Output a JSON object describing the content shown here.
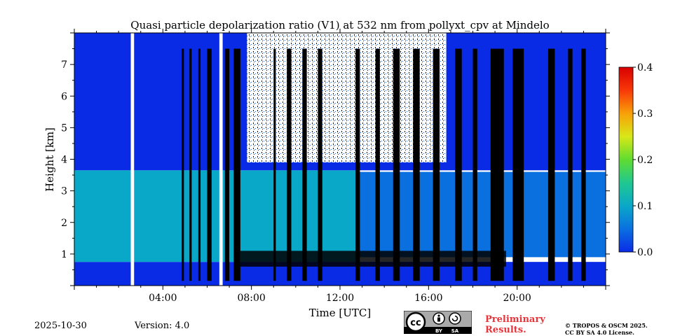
{
  "chart_data": {
    "type": "heatmap",
    "title": "Quasi particle depolarization ratio (V1) at 532 nm from pollyxt_cpv at Mindelo",
    "xlabel": "Time [UTC]",
    "ylabel": "Height [km]",
    "xlim_hours": [
      0,
      24
    ],
    "ylim_km": [
      0,
      8
    ],
    "x_ticks": [
      {
        "hour": 4,
        "label": "04:00"
      },
      {
        "hour": 8,
        "label": "08:00"
      },
      {
        "hour": 12,
        "label": "12:00"
      },
      {
        "hour": 16,
        "label": "16:00"
      },
      {
        "hour": 20,
        "label": "20:00"
      }
    ],
    "y_ticks": [
      {
        "km": 1,
        "label": "1"
      },
      {
        "km": 2,
        "label": "2"
      },
      {
        "km": 3,
        "label": "3"
      },
      {
        "km": 4,
        "label": "4"
      },
      {
        "km": 5,
        "label": "5"
      },
      {
        "km": 6,
        "label": "6"
      },
      {
        "km": 7,
        "label": "7"
      }
    ],
    "colorbar": {
      "range": [
        0.0,
        0.4
      ],
      "ticks": [
        {
          "value": 0.0,
          "label": "0.0"
        },
        {
          "value": 0.1,
          "label": "0.1"
        },
        {
          "value": 0.2,
          "label": "0.2"
        },
        {
          "value": 0.3,
          "label": "0.3"
        },
        {
          "value": 0.4,
          "label": "0.4"
        }
      ],
      "colormap": [
        "#0a2be6",
        "#0a70e0",
        "#0aa8c8",
        "#20c890",
        "#60dc30",
        "#d8e818",
        "#f8a008",
        "#f83808",
        "#d80000"
      ]
    },
    "layers": [
      {
        "name": "surface-low",
        "t0": 0,
        "t1": 24,
        "h0": 0.0,
        "h1": 0.75,
        "value": 0.02
      },
      {
        "name": "dust-layer",
        "t0": 0,
        "t1": 12.8,
        "h0": 0.75,
        "h1": 3.65,
        "value": 0.08
      },
      {
        "name": "dust-layer-afternoon",
        "t0": 12.8,
        "t1": 24,
        "h0": 0.9,
        "h1": 3.6,
        "value": 0.07
      },
      {
        "name": "free-troposphere",
        "t0": 0,
        "t1": 24,
        "h0": 3.65,
        "h1": 8.0,
        "value": 0.01
      }
    ],
    "data_gaps_hours": [
      [
        2.55,
        2.7
      ],
      [
        6.55,
        6.7
      ]
    ],
    "cloud_columns_hours": [
      [
        4.85,
        4.95
      ],
      [
        5.2,
        5.3
      ],
      [
        5.6,
        5.7
      ],
      [
        6.0,
        6.2
      ],
      [
        6.8,
        7.0
      ],
      [
        7.2,
        7.5
      ],
      [
        9.0,
        9.1
      ],
      [
        9.6,
        9.8
      ],
      [
        10.3,
        10.5
      ],
      [
        11.0,
        11.2
      ],
      [
        12.7,
        12.9
      ],
      [
        13.6,
        13.8
      ],
      [
        14.4,
        14.7
      ],
      [
        15.3,
        15.6
      ],
      [
        16.2,
        16.5
      ],
      [
        17.2,
        17.5
      ],
      [
        18.0,
        18.2
      ],
      [
        18.8,
        19.4
      ],
      [
        19.8,
        20.3
      ],
      [
        21.4,
        21.7
      ],
      [
        22.3,
        22.5
      ],
      [
        22.9,
        23.1
      ]
    ]
  },
  "footer": {
    "date": "2025-10-30",
    "version": "Version: 4.0",
    "preliminary_line1": "Preliminary",
    "preliminary_line2": "Results.",
    "copyright_line1": "© TROPOS & OSCM 2025.",
    "copyright_line2": "CC BY SA 4.0 License.",
    "license_by": "BY",
    "license_sa": "SA",
    "license_cc": "cc"
  },
  "colors": {
    "cloud": "#000000",
    "gap": "#ffffff",
    "prelim_red": "#e8343a",
    "badge_gray": "#a9aaa9"
  }
}
